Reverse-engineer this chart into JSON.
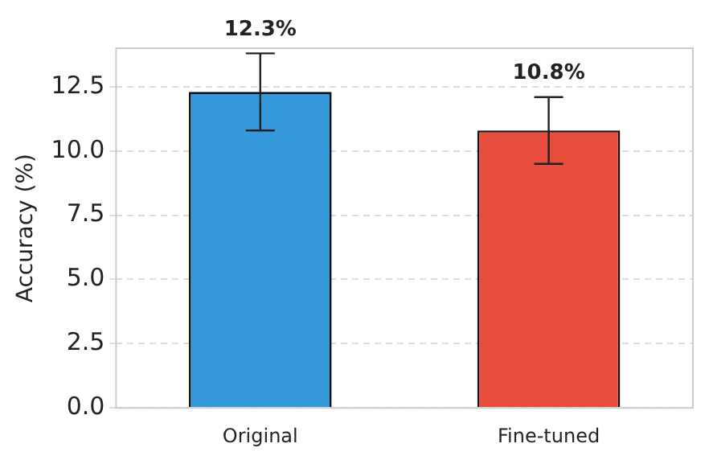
{
  "chart_data": {
    "type": "bar",
    "ylabel": "Accuracy (%)",
    "categories": [
      "Original",
      "Fine-tuned"
    ],
    "values": [
      12.3,
      10.8
    ],
    "colors": [
      "#3498db",
      "#e74c3c"
    ],
    "errors": [
      1.5,
      1.3
    ],
    "value_labels": [
      "12.3%",
      "10.8%"
    ],
    "ylim": [
      0,
      14
    ],
    "yticks": [
      {
        "value": 0,
        "label": "0.0"
      },
      {
        "value": 2.5,
        "label": "2.5"
      },
      {
        "value": 5,
        "label": "5.0"
      },
      {
        "value": 7.5,
        "label": "7.5"
      },
      {
        "value": 10,
        "label": "10.0"
      },
      {
        "value": 12.5,
        "label": "12.5"
      }
    ],
    "grid": "y",
    "legend": false
  }
}
